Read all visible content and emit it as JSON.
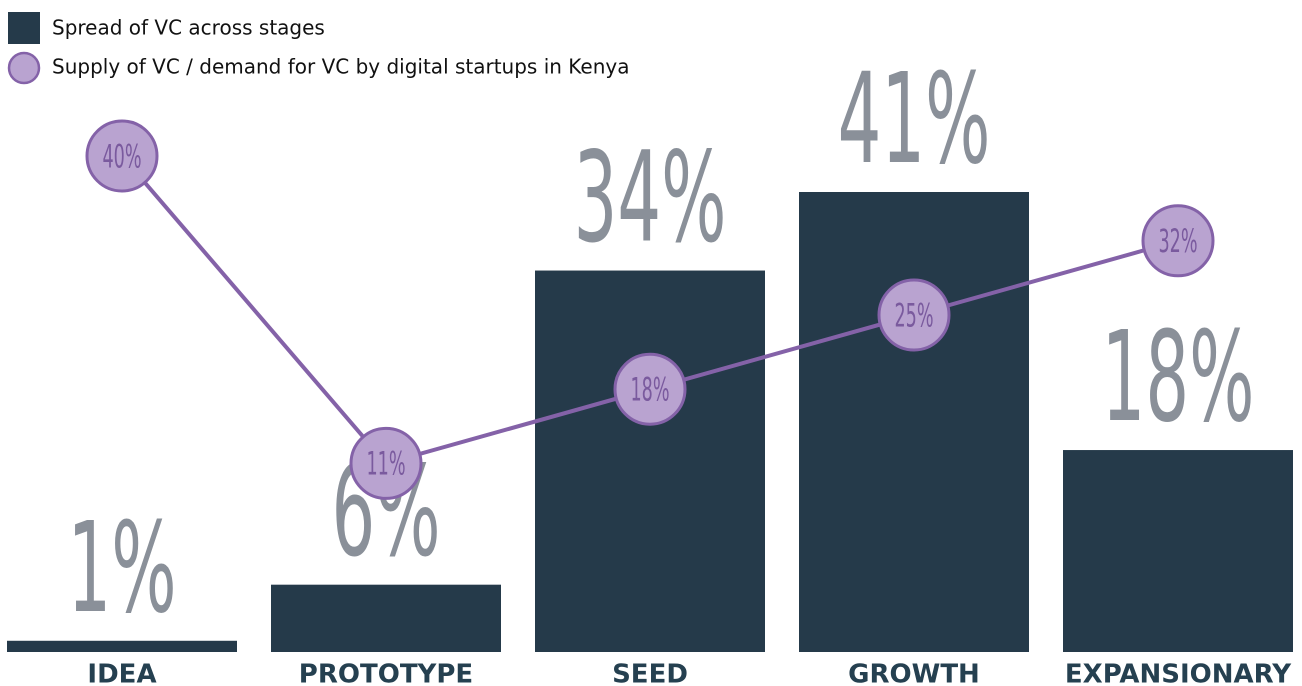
{
  "chart_data": {
    "type": "combo",
    "categories": [
      "IDEA",
      "PROTOTYPE",
      "SEED",
      "GROWTH",
      "EXPANSIONARY"
    ],
    "series": [
      {
        "name": "Spread of VC across stages",
        "type": "bar",
        "color": "#253a4a",
        "values": [
          1,
          6,
          34,
          41,
          18
        ],
        "value_labels": [
          "1%",
          "6%",
          "34%",
          "41%",
          "18%"
        ]
      },
      {
        "name": "Supply of VC / demand for VC by digital startups in Kenya",
        "type": "line",
        "color": "#8462a8",
        "values": [
          40,
          11,
          18,
          25,
          32
        ],
        "value_labels": [
          "40%",
          "11%",
          "18%",
          "25%",
          "32%"
        ]
      }
    ]
  }
}
